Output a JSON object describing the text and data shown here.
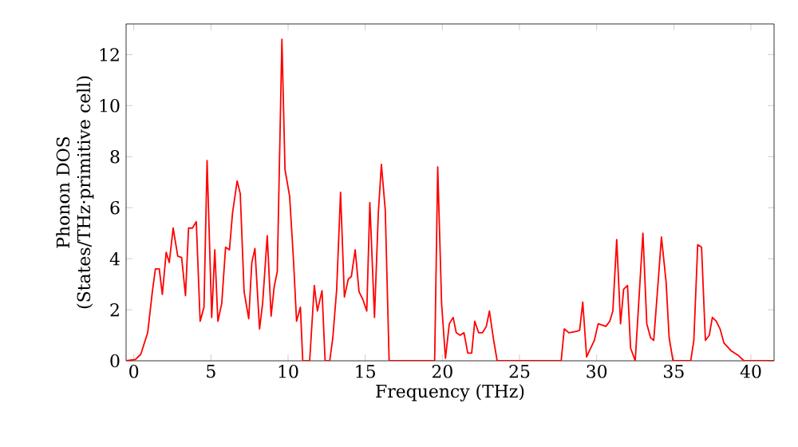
{
  "chart_data": {
    "type": "line",
    "xlabel": "Frequency (THz)",
    "ylabel": "Phonon DOS (States/THz·primitive cell)",
    "xlim": [
      -0.5,
      41.5
    ],
    "ylim": [
      0,
      13.2
    ],
    "xticks": [
      0,
      5,
      10,
      15,
      20,
      25,
      30,
      35,
      40
    ],
    "yticks": [
      0,
      2,
      4,
      6,
      8,
      10,
      12
    ],
    "series": [
      {
        "color": "#ff0000",
        "x": [
          -0.5,
          0.1,
          0.45,
          0.9,
          1.2,
          1.4,
          1.65,
          1.85,
          2.1,
          2.3,
          2.55,
          2.85,
          3.1,
          3.35,
          3.55,
          3.8,
          4.05,
          4.3,
          4.55,
          4.75,
          5.05,
          5.25,
          5.45,
          5.7,
          5.95,
          6.2,
          6.4,
          6.7,
          6.9,
          7.15,
          7.45,
          7.65,
          7.85,
          8.15,
          8.35,
          8.65,
          8.9,
          9.1,
          9.3,
          9.6,
          9.8,
          10.1,
          10.35,
          10.55,
          10.8,
          10.95,
          11.4,
          11.7,
          11.9,
          12.2,
          12.4,
          12.7,
          12.9,
          13.15,
          13.4,
          13.65,
          13.9,
          14.1,
          14.35,
          14.6,
          14.85,
          15.1,
          15.3,
          15.6,
          15.85,
          16.05,
          16.3,
          16.55,
          19.5,
          19.7,
          19.95,
          20.2,
          20.45,
          20.7,
          20.9,
          21.15,
          21.4,
          21.65,
          21.9,
          22.1,
          22.35,
          22.6,
          22.85,
          23.05,
          23.3,
          23.55,
          27.7,
          27.9,
          28.2,
          28.7,
          28.9,
          29.1,
          29.35,
          29.85,
          30.1,
          30.6,
          30.85,
          31.05,
          31.3,
          31.55,
          31.75,
          32.0,
          32.2,
          32.5,
          33.0,
          33.25,
          33.5,
          33.7,
          34.0,
          34.2,
          34.5,
          34.7,
          34.95,
          36.1,
          36.3,
          36.55,
          36.8,
          37.05,
          37.3,
          37.5,
          37.75,
          38.0,
          38.25,
          38.7,
          39.2,
          39.55,
          41.5
        ],
        "values": [
          0,
          0.05,
          0.25,
          1.1,
          2.7,
          3.6,
          3.6,
          2.6,
          4.25,
          3.85,
          5.2,
          4.1,
          4.05,
          2.55,
          5.2,
          5.2,
          5.45,
          1.55,
          2.1,
          7.85,
          1.7,
          4.35,
          1.55,
          2.25,
          4.45,
          4.35,
          5.8,
          7.05,
          6.55,
          2.7,
          1.65,
          3.85,
          4.4,
          1.25,
          2.25,
          4.9,
          1.75,
          2.9,
          3.5,
          12.6,
          7.5,
          6.45,
          3.95,
          1.55,
          2.1,
          0,
          0,
          2.95,
          1.95,
          2.75,
          0,
          0,
          0.9,
          2.8,
          6.6,
          2.5,
          3.2,
          3.3,
          4.35,
          2.7,
          2.4,
          1.95,
          6.2,
          1.7,
          5.8,
          7.7,
          5.9,
          0,
          0,
          7.6,
          2.25,
          0.1,
          1.45,
          1.7,
          1.1,
          1.0,
          1.1,
          0.3,
          0.3,
          1.55,
          1.1,
          1.1,
          1.35,
          1.95,
          0.9,
          0,
          0,
          1.25,
          1.1,
          1.15,
          1.2,
          2.3,
          0.15,
          0.8,
          1.45,
          1.35,
          1.55,
          1.95,
          4.75,
          1.45,
          2.8,
          2.95,
          0.5,
          0,
          5.0,
          1.45,
          0.9,
          0.8,
          3.2,
          4.85,
          3.1,
          0.9,
          0,
          0,
          0.8,
          4.55,
          4.45,
          0.8,
          1.0,
          1.7,
          1.55,
          1.25,
          0.7,
          0.4,
          0.2,
          0,
          0
        ]
      }
    ]
  }
}
